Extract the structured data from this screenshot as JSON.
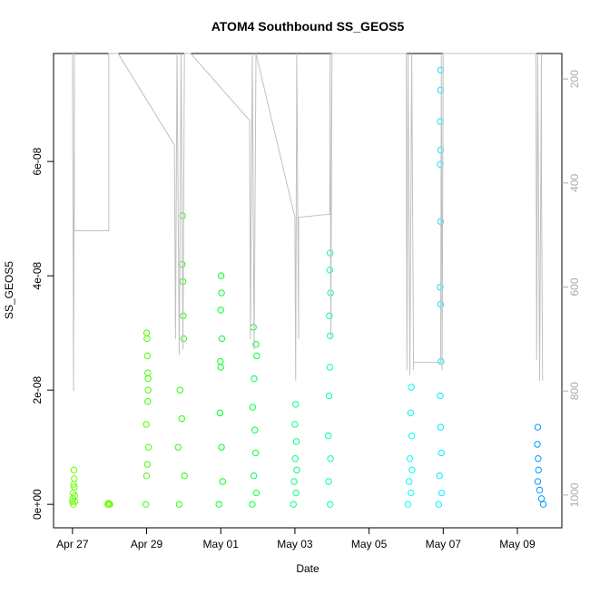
{
  "chart_data": {
    "type": "scatter",
    "title": "ATOM4 Southbound SS_GEOS5",
    "x_label": "Date",
    "y_label": "SS_GEOS5",
    "xlim": [
      -0.51,
      13.2
    ],
    "ylim": [
      -4.1e-09,
      7.89e-08
    ],
    "y2lim": [
      1063,
      151
    ],
    "xticks": [
      {
        "value": 0,
        "label": "Apr 27"
      },
      {
        "value": 2,
        "label": "Apr 29"
      },
      {
        "value": 4,
        "label": "May 01"
      },
      {
        "value": 6,
        "label": "May 03"
      },
      {
        "value": 8,
        "label": "May 05"
      },
      {
        "value": 10,
        "label": "May 07"
      },
      {
        "value": 12,
        "label": "May 09"
      }
    ],
    "yticks": [
      {
        "value": 0,
        "label": "0e+00"
      },
      {
        "value": 2e-08,
        "label": "2e-08"
      },
      {
        "value": 4e-08,
        "label": "4e-08"
      },
      {
        "value": 6e-08,
        "label": "6e-08"
      }
    ],
    "y2ticks": [
      200,
      400,
      600,
      800,
      1000
    ],
    "series": [
      {
        "color": "#66ff00",
        "x": [
          0.0,
          0.01,
          0.02,
          0.03,
          0.04,
          0.05,
          0.06,
          0.07,
          0.02,
          0.05
        ],
        "values": [
          5e-10,
          1e-09,
          2e-09,
          3.5e-09,
          6e-09,
          4.5e-09,
          1.5e-09,
          5e-10,
          0,
          3e-09
        ]
      },
      {
        "color": "#66ff00",
        "x": [
          0.95,
          0.97,
          0.99,
          1.01
        ],
        "values": [
          0,
          2e-10,
          1e-10,
          0
        ]
      },
      {
        "color": "#44ff00",
        "x": [
          1.98,
          2.0,
          2.01,
          2.02,
          2.03,
          1.99,
          2.04,
          2.05,
          2.0,
          2.02,
          2.03,
          2.04
        ],
        "values": [
          0,
          3e-08,
          2.9e-08,
          2.6e-08,
          2.3e-08,
          1.4e-08,
          2e-08,
          1e-08,
          5e-09,
          7e-09,
          1.8e-08,
          2.2e-08
        ]
      },
      {
        "color": "#22ff00",
        "x": [
          2.97,
          2.96,
          2.98,
          2.99,
          3.0,
          2.9,
          2.95,
          2.85,
          3.02,
          2.88
        ],
        "values": [
          5.05e-08,
          4.2e-08,
          3.9e-08,
          3.3e-08,
          2.9e-08,
          2e-08,
          1.5e-08,
          1e-08,
          5e-09,
          0
        ]
      },
      {
        "color": "#00ff22",
        "x": [
          4.01,
          4.02,
          4.0,
          4.03,
          3.99,
          4.0,
          3.98,
          4.02,
          4.05,
          3.95
        ],
        "values": [
          4e-08,
          3.7e-08,
          3.4e-08,
          2.9e-08,
          2.5e-08,
          2.4e-08,
          1.6e-08,
          1e-08,
          4e-09,
          0
        ]
      },
      {
        "color": "#00ff44",
        "x": [
          4.88,
          4.95,
          4.97,
          4.9,
          4.86,
          4.92,
          4.94,
          4.89,
          4.96,
          4.85
        ],
        "values": [
          3.1e-08,
          2.8e-08,
          2.6e-08,
          2.2e-08,
          1.7e-08,
          1.3e-08,
          9e-09,
          5e-09,
          2e-09,
          0
        ]
      },
      {
        "color": "#00ff88",
        "x": [
          6.02,
          6.0,
          6.04,
          6.01,
          6.05,
          5.98,
          6.03,
          5.96
        ],
        "values": [
          1.75e-08,
          1.4e-08,
          1.1e-08,
          8e-09,
          6e-09,
          4e-09,
          2e-09,
          0
        ]
      },
      {
        "color": "#00ffaa",
        "x": [
          6.95,
          6.94,
          6.96,
          6.93,
          6.95,
          6.94,
          6.92,
          6.9,
          6.96,
          6.91,
          6.95
        ],
        "values": [
          4.4e-08,
          4.1e-08,
          3.7e-08,
          3.3e-08,
          2.95e-08,
          2.4e-08,
          1.9e-08,
          1.2e-08,
          8e-09,
          4e-09,
          0
        ]
      },
      {
        "color": "#00ffee",
        "x": [
          9.14,
          9.12,
          9.15,
          9.1,
          9.16,
          9.08,
          9.13,
          9.05
        ],
        "values": [
          2.05e-08,
          1.6e-08,
          1.2e-08,
          8e-09,
          6e-09,
          4e-09,
          2e-09,
          0
        ]
      },
      {
        "color": "#00eeff",
        "x": [
          9.93,
          9.93,
          9.92,
          9.93,
          9.92,
          9.93,
          9.92,
          9.93,
          9.94,
          9.92,
          9.93,
          9.95,
          9.9,
          9.96,
          9.88
        ],
        "values": [
          7.6e-08,
          7.25e-08,
          6.7e-08,
          6.2e-08,
          5.95e-08,
          4.95e-08,
          3.8e-08,
          3.5e-08,
          2.5e-08,
          1.9e-08,
          1.35e-08,
          9e-09,
          5e-09,
          2e-09,
          0
        ]
      },
      {
        "color": "#0099ff",
        "x": [
          12.55,
          12.54,
          12.56,
          12.57,
          12.55,
          12.6,
          12.65,
          12.7
        ],
        "values": [
          1.35e-08,
          1.05e-08,
          8e-09,
          6e-09,
          4e-09,
          2.5e-09,
          1e-09,
          0
        ]
      },
      {
        "type": "line",
        "axis": "y2",
        "color": "#c0c0c0",
        "x": [
          0.0,
          0.03,
          0.05,
          0.05,
          0.98,
          0.98,
          1.23,
          2.75,
          2.78,
          2.82,
          2.88,
          2.93,
          2.98,
          3.02,
          3.19,
          4.78,
          4.8,
          4.85,
          4.9,
          4.95,
          6.0,
          6.02,
          6.05,
          6.1,
          6.1,
          6.94,
          6.95,
          6.97,
          7.0,
          9.0,
          9.02,
          9.05,
          9.1,
          9.15,
          9.2,
          9.2,
          9.93,
          9.95,
          9.97,
          10.0,
          12.5,
          12.52,
          12.55,
          12.6,
          12.65,
          12.65,
          12.68
        ],
        "values": [
          151,
          800,
          151,
          492,
          492,
          151,
          151,
          327,
          700,
          151,
          730,
          151,
          720,
          151,
          151,
          280,
          700,
          151,
          720,
          151,
          466,
          780,
          151,
          700,
          466,
          460,
          151,
          700,
          151,
          151,
          760,
          151,
          770,
          151,
          760,
          745,
          745,
          151,
          760,
          151,
          151,
          740,
          151,
          780,
          151,
          379,
          780
        ]
      }
    ]
  }
}
